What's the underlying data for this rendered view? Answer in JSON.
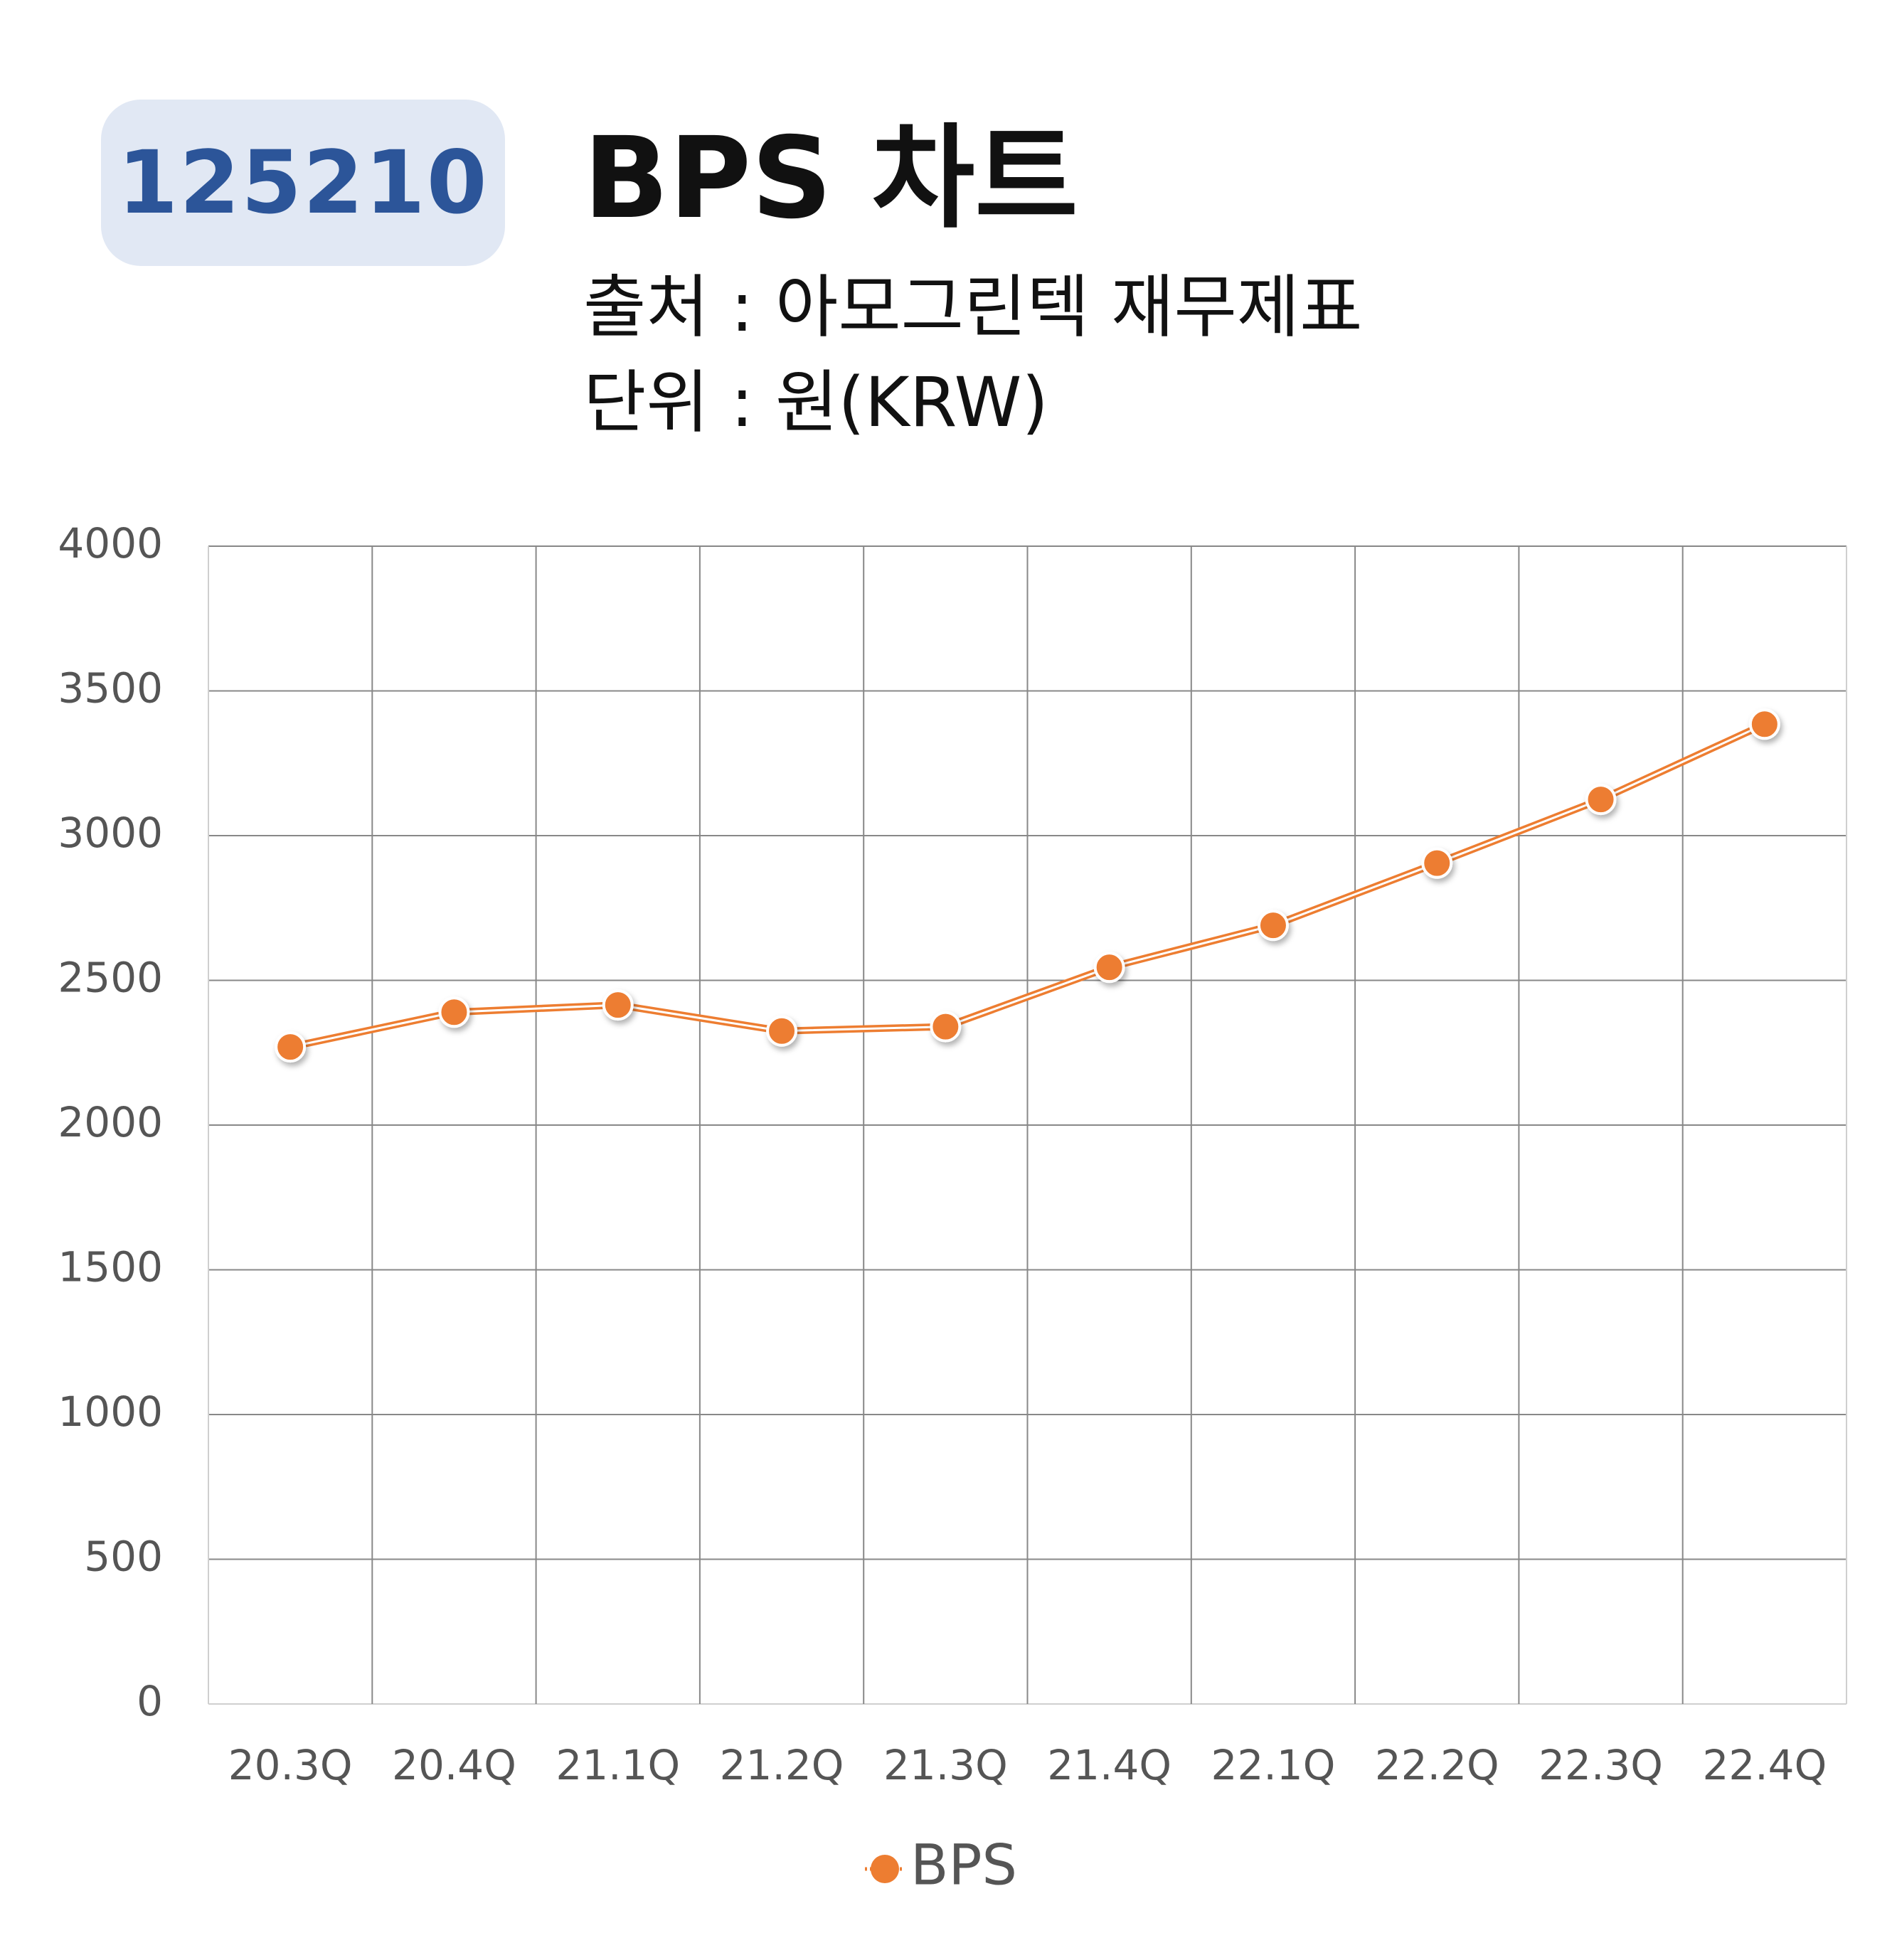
{
  "header": {
    "code": "125210",
    "title": "BPS 차트",
    "source": "출처 : 아모그린텍 재무제표",
    "unit": "단위 : 원(KRW)"
  },
  "colors": {
    "badge_bg": "#e1e8f4",
    "badge_text": "#2c5599",
    "series": "#ed7d31",
    "grid": "#888888"
  },
  "chart_data": {
    "type": "line",
    "categories": [
      "20.3Q",
      "20.4Q",
      "21.1Q",
      "21.2Q",
      "21.3Q",
      "21.4Q",
      "22.1Q",
      "22.2Q",
      "22.3Q",
      "22.4Q"
    ],
    "series": [
      {
        "name": "BPS",
        "values": [
          2270,
          2390,
          2415,
          2325,
          2340,
          2545,
          2690,
          2905,
          3125,
          3385
        ]
      }
    ],
    "ylim": [
      0,
      4000
    ],
    "yticks": [
      0,
      500,
      1000,
      1500,
      2000,
      2500,
      3000,
      3500,
      4000
    ],
    "grid": true,
    "legend_position": "bottom"
  }
}
